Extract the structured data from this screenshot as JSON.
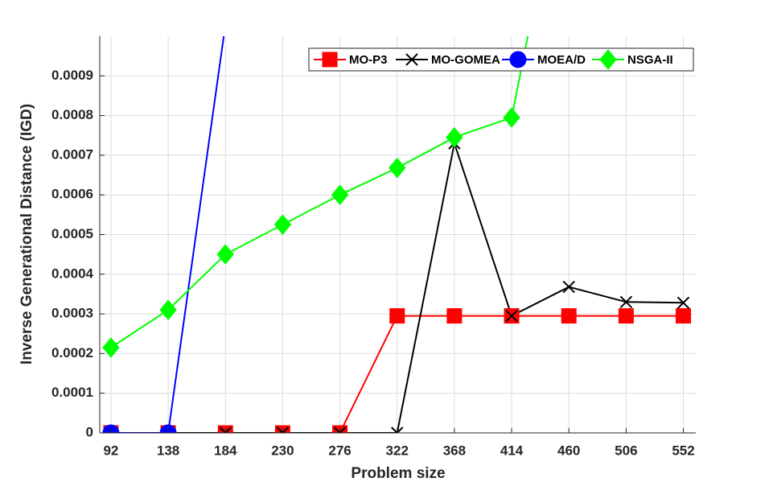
{
  "chart_data": {
    "type": "line",
    "xlabel": "Problem size",
    "ylabel": "Inverse Generational Distance (IGD)",
    "x": [
      92,
      138,
      184,
      230,
      276,
      322,
      368,
      414,
      460,
      506,
      552
    ],
    "xlim": [
      83,
      562
    ],
    "xticks": [
      92,
      138,
      184,
      230,
      276,
      322,
      368,
      414,
      460,
      506,
      552
    ],
    "ylim": [
      0,
      0.001
    ],
    "yticks": [
      0,
      0.0001,
      0.0002,
      0.0003,
      0.0004,
      0.0005,
      0.0006,
      0.0007,
      0.0008,
      0.0009
    ],
    "grid": true,
    "legend": "top-right",
    "series": [
      {
        "name": "MO-P3",
        "color": "#ff0000",
        "marker": "square",
        "values": [
          0,
          0,
          0,
          0,
          0,
          0.000295,
          0.000295,
          0.000295,
          0.000295,
          0.000295,
          0.000295
        ]
      },
      {
        "name": "MO-GOMEA",
        "color": "#000000",
        "marker": "x",
        "values": [
          0,
          0,
          0,
          0,
          0,
          0,
          0.00073,
          0.000295,
          0.000368,
          0.00033,
          0.000328
        ]
      },
      {
        "name": "MOEA/D",
        "color": "#0000ff",
        "marker": "circle",
        "values": [
          0,
          0,
          0.00103,
          null,
          null,
          null,
          null,
          null,
          null,
          null,
          null
        ]
      },
      {
        "name": "NSGA-II",
        "color": "#00ff00",
        "marker": "diamond",
        "values": [
          0.000215,
          0.00031,
          0.00045,
          0.000525,
          0.0006,
          0.000668,
          0.000745,
          0.000795,
          0.00152,
          null,
          null
        ]
      }
    ]
  }
}
